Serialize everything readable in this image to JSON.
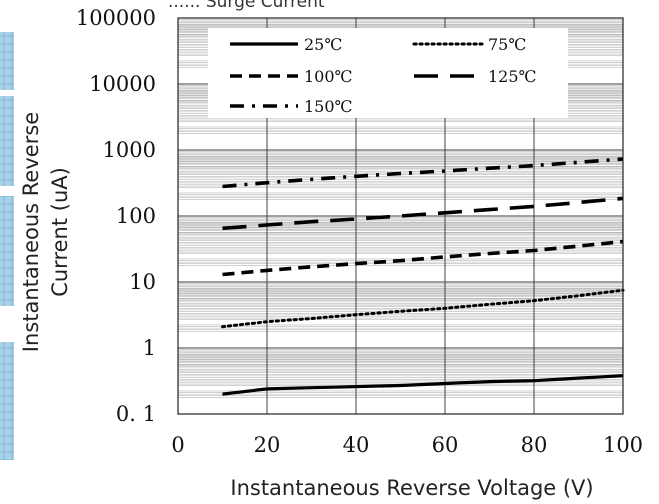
{
  "chart_data": {
    "type": "line",
    "title": "...... Surge Current",
    "xlabel": "Instantaneous Reverse Voltage (V)",
    "ylabel_line1": "Instantaneous Reverse",
    "ylabel_line2": "Current (uA)",
    "xscale": "linear",
    "yscale": "log",
    "xlim": [
      0,
      100
    ],
    "ylim": [
      0.1,
      100000
    ],
    "xticks": [
      0,
      20,
      40,
      60,
      80,
      100
    ],
    "xtick_labels": [
      "0",
      "20",
      "40",
      "60",
      "80",
      "100"
    ],
    "yticks": [
      0.1,
      1,
      10,
      100,
      1000,
      10000,
      100000
    ],
    "ytick_labels": [
      "0. 1",
      "1",
      "10",
      "100",
      "1000",
      "10000",
      "100000"
    ],
    "grid": true,
    "legend_position": "top",
    "series": [
      {
        "name": "25℃",
        "style": "solid",
        "x": [
          10,
          20,
          30,
          40,
          50,
          60,
          70,
          80,
          90,
          100
        ],
        "y": [
          0.2,
          0.24,
          0.25,
          0.26,
          0.27,
          0.29,
          0.31,
          0.32,
          0.35,
          0.38
        ]
      },
      {
        "name": "75℃",
        "style": "dotted",
        "x": [
          10,
          20,
          30,
          40,
          50,
          60,
          70,
          80,
          90,
          100
        ],
        "y": [
          2.1,
          2.5,
          2.8,
          3.2,
          3.6,
          4.0,
          4.6,
          5.2,
          6.2,
          7.5
        ]
      },
      {
        "name": "100℃",
        "style": "short-dash",
        "x": [
          10,
          20,
          30,
          40,
          50,
          60,
          70,
          80,
          90,
          100
        ],
        "y": [
          13,
          15,
          17,
          19,
          21,
          24,
          27,
          30,
          35,
          41
        ]
      },
      {
        "name": "125℃",
        "style": "long-dash",
        "x": [
          10,
          20,
          30,
          40,
          50,
          60,
          70,
          80,
          90,
          100
        ],
        "y": [
          65,
          73,
          82,
          90,
          100,
          112,
          125,
          140,
          160,
          185
        ]
      },
      {
        "name": "150℃",
        "style": "dash-dot",
        "x": [
          10,
          20,
          30,
          40,
          50,
          60,
          70,
          80,
          90,
          100
        ],
        "y": [
          280,
          320,
          360,
          400,
          440,
          480,
          530,
          580,
          650,
          730
        ]
      }
    ],
    "colors": {
      "line": "#000000",
      "grid_major": "#404040",
      "grid_minor": "#b8b8b8",
      "side_tab": "#a9d2ea"
    }
  }
}
